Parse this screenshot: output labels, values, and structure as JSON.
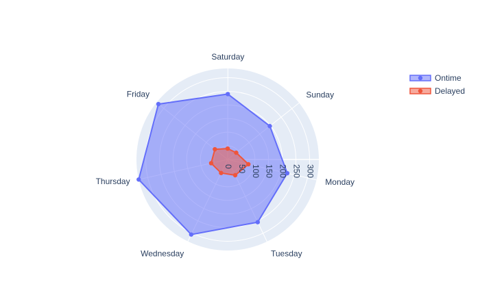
{
  "chart_data": {
    "type": "radar",
    "theta": [
      "Monday",
      "Tuesday",
      "Wednesday",
      "Thursday",
      "Friday",
      "Saturday",
      "Sunday"
    ],
    "radial_ticks": [
      0,
      50,
      100,
      150,
      200,
      250,
      300
    ],
    "radial_range": [
      0,
      334
    ],
    "series": [
      {
        "name": "Ontime",
        "values": [
          224,
          255,
          306,
          334,
          325,
          240,
          197
        ],
        "color": "#636efa"
      },
      {
        "name": "Delayed",
        "values": [
          78,
          64,
          55,
          62,
          60,
          40,
          40
        ],
        "color": "#ef553b"
      }
    ],
    "legend_position": "top-right",
    "polar_bgcolor": "#e5ecf6",
    "grid": true
  }
}
